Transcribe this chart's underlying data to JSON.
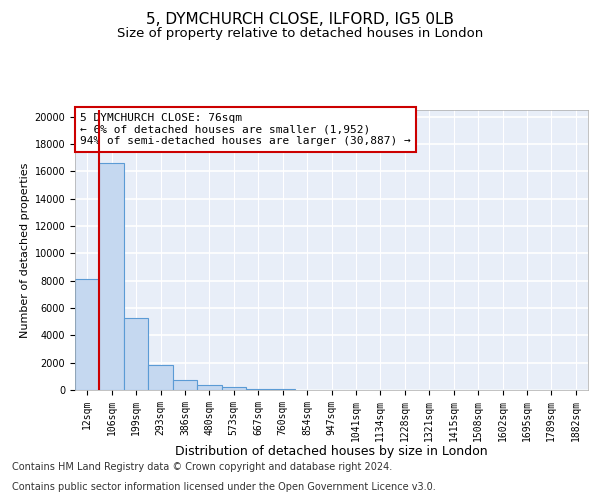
{
  "title1": "5, DYMCHURCH CLOSE, ILFORD, IG5 0LB",
  "title2": "Size of property relative to detached houses in London",
  "xlabel": "Distribution of detached houses by size in London",
  "ylabel": "Number of detached properties",
  "bin_labels": [
    "12sqm",
    "106sqm",
    "199sqm",
    "293sqm",
    "386sqm",
    "480sqm",
    "573sqm",
    "667sqm",
    "760sqm",
    "854sqm",
    "947sqm",
    "1041sqm",
    "1134sqm",
    "1228sqm",
    "1321sqm",
    "1415sqm",
    "1508sqm",
    "1602sqm",
    "1695sqm",
    "1789sqm",
    "1882sqm"
  ],
  "bar_values": [
    8100,
    16600,
    5300,
    1800,
    750,
    350,
    200,
    100,
    50,
    0,
    0,
    0,
    0,
    0,
    0,
    0,
    0,
    0,
    0,
    0,
    0
  ],
  "bar_color": "#c5d8f0",
  "bar_edge_color": "#5b9bd5",
  "annotation_box_color": "#cc0000",
  "annotation_line_color": "#cc0000",
  "annotation_title": "5 DYMCHURCH CLOSE: 76sqm",
  "annotation_line1": "← 6% of detached houses are smaller (1,952)",
  "annotation_line2": "94% of semi-detached houses are larger (30,887) →",
  "footer1": "Contains HM Land Registry data © Crown copyright and database right 2024.",
  "footer2": "Contains public sector information licensed under the Open Government Licence v3.0.",
  "ylim": [
    0,
    20500
  ],
  "yticks": [
    0,
    2000,
    4000,
    6000,
    8000,
    10000,
    12000,
    14000,
    16000,
    18000,
    20000
  ],
  "background_color": "#e8eef8",
  "grid_color": "#ffffff",
  "title1_fontsize": 11,
  "title2_fontsize": 9.5,
  "xlabel_fontsize": 9,
  "ylabel_fontsize": 8,
  "tick_fontsize": 7,
  "footer_fontsize": 7,
  "ann_fontsize": 8,
  "property_line_x": 0.5
}
